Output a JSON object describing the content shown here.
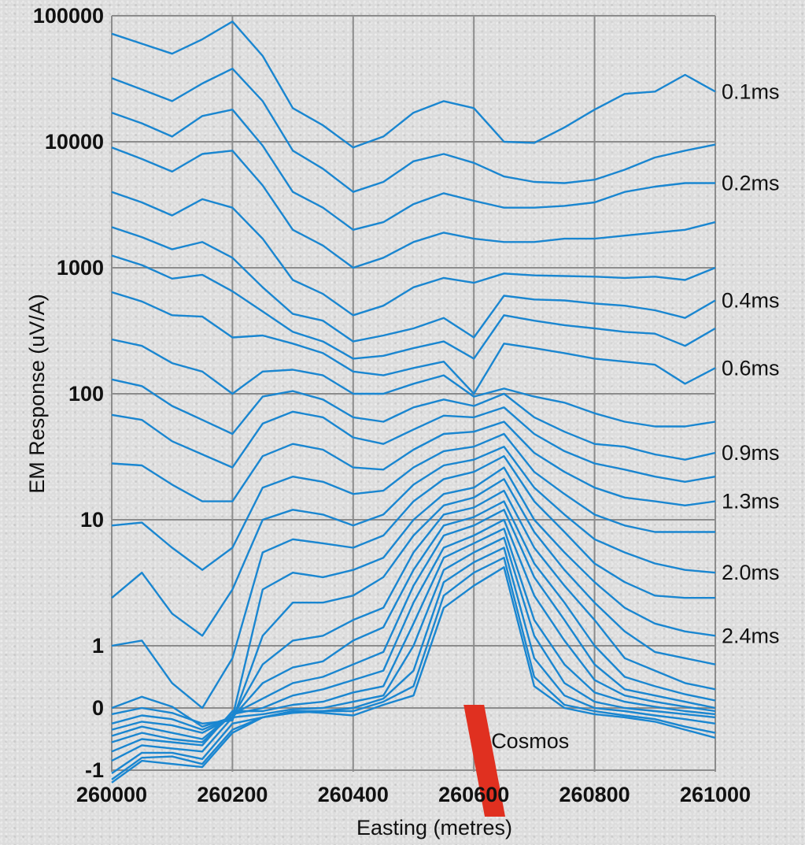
{
  "chart_data": {
    "type": "line",
    "title": "",
    "xlabel": "Easting (metres)",
    "ylabel": "EM Response (uV/A)",
    "xlim": [
      260000,
      261000
    ],
    "y_scale": "piecewise-log",
    "y_scale_note": "log10 above 1, linear between -1 and 1",
    "x_ticks": [
      "260000",
      "260200",
      "260400",
      "260600",
      "260800",
      "261000"
    ],
    "y_ticks": [
      {
        "value": 100000,
        "label": "100000"
      },
      {
        "value": 10000,
        "label": "10000"
      },
      {
        "value": 1000,
        "label": "1000"
      },
      {
        "value": 100,
        "label": "100"
      },
      {
        "value": 10,
        "label": "10"
      },
      {
        "value": 1,
        "label": "1"
      },
      {
        "value": 0,
        "label": "0"
      },
      {
        "value": -1,
        "label": "-1"
      }
    ],
    "grid": true,
    "line_color": "#1a86d0",
    "x": [
      260000,
      260050,
      260100,
      260150,
      260200,
      260250,
      260300,
      260350,
      260400,
      260450,
      260500,
      260550,
      260600,
      260650,
      260700,
      260750,
      260800,
      260850,
      260900,
      260950,
      261000
    ],
    "series": [
      {
        "name": "0.1ms",
        "values": [
          72000,
          60000,
          50000,
          65000,
          90000,
          48000,
          18500,
          13500,
          9000,
          11000,
          17000,
          21000,
          18500,
          10000,
          9800,
          13000,
          18000,
          24000,
          25000,
          34000,
          25000
        ]
      },
      {
        "name": "",
        "values": [
          32000,
          26000,
          21000,
          29000,
          38000,
          21000,
          8500,
          6100,
          4000,
          4800,
          7000,
          8000,
          6800,
          5300,
          4800,
          4700,
          5000,
          6000,
          7500,
          8500,
          9500
        ]
      },
      {
        "name": "0.2ms",
        "values": [
          17000,
          14000,
          11000,
          16000,
          18000,
          9300,
          4000,
          3000,
          2000,
          2300,
          3200,
          3900,
          3400,
          3000,
          3000,
          3100,
          3300,
          4000,
          4400,
          4700,
          4700
        ]
      },
      {
        "name": "",
        "values": [
          9000,
          7300,
          5800,
          8000,
          8500,
          4500,
          2000,
          1500,
          1000,
          1200,
          1600,
          1900,
          1700,
          1600,
          1600,
          1700,
          1700,
          1800,
          1900,
          2000,
          2300
        ]
      },
      {
        "name": "",
        "values": [
          4000,
          3300,
          2600,
          3500,
          3000,
          1700,
          800,
          620,
          420,
          500,
          700,
          830,
          760,
          900,
          870,
          860,
          850,
          830,
          850,
          800,
          1000
        ]
      },
      {
        "name": "0.4ms",
        "values": [
          2100,
          1750,
          1400,
          1600,
          1200,
          700,
          430,
          380,
          260,
          290,
          330,
          400,
          280,
          600,
          560,
          550,
          520,
          500,
          460,
          400,
          550
        ]
      },
      {
        "name": "",
        "values": [
          1250,
          1050,
          820,
          880,
          650,
          450,
          310,
          260,
          190,
          200,
          230,
          260,
          190,
          420,
          380,
          350,
          330,
          310,
          300,
          240,
          330
        ]
      },
      {
        "name": "0.6ms",
        "values": [
          640,
          540,
          420,
          410,
          280,
          290,
          250,
          210,
          150,
          140,
          160,
          180,
          100,
          250,
          230,
          210,
          190,
          180,
          170,
          120,
          160
        ]
      },
      {
        "name": "",
        "values": [
          270,
          240,
          175,
          150,
          100,
          150,
          155,
          140,
          100,
          100,
          120,
          140,
          95,
          110,
          95,
          85,
          70,
          60,
          55,
          55,
          60
        ]
      },
      {
        "name": "0.9ms",
        "values": [
          130,
          115,
          80,
          62,
          48,
          95,
          105,
          90,
          65,
          60,
          78,
          90,
          80,
          100,
          65,
          50,
          40,
          38,
          33,
          30,
          34
        ]
      },
      {
        "name": "",
        "values": [
          68,
          62,
          42,
          33,
          26,
          58,
          72,
          65,
          45,
          40,
          52,
          67,
          65,
          78,
          48,
          35,
          28,
          25,
          22,
          20,
          22
        ]
      },
      {
        "name": "1.3ms",
        "values": [
          28,
          27,
          19,
          14,
          14,
          32,
          40,
          36,
          26,
          25,
          36,
          48,
          50,
          60,
          34,
          24,
          18,
          15,
          14,
          13,
          14
        ]
      },
      {
        "name": "",
        "values": [
          9,
          9.5,
          6,
          4,
          6,
          18,
          22,
          20,
          16,
          17,
          26,
          35,
          38,
          48,
          24,
          16,
          11,
          9,
          8,
          8,
          8
        ]
      },
      {
        "name": "2.0ms",
        "values": [
          2.4,
          3.8,
          1.8,
          1.2,
          2.8,
          10,
          12,
          11,
          9,
          11,
          19,
          27,
          30,
          38,
          18,
          11,
          7,
          5.5,
          4.5,
          4,
          3.8
        ]
      },
      {
        "name": "",
        "values": [
          1,
          1.1,
          0.4,
          0,
          0.8,
          5.5,
          7,
          6.5,
          6,
          7.5,
          14,
          21,
          24,
          32,
          14,
          8,
          4.5,
          3.2,
          2.5,
          2.4,
          2.4
        ]
      },
      {
        "name": "2.4ms",
        "values": [
          0,
          0.18,
          0.02,
          -0.3,
          -0.15,
          2.8,
          3.8,
          3.5,
          4,
          5,
          10,
          16,
          18,
          26,
          10,
          5.5,
          3.2,
          2,
          1.5,
          1.3,
          1.2
        ]
      },
      {
        "name": "",
        "values": [
          -0.1,
          0,
          -0.08,
          -0.25,
          -0.2,
          1.2,
          2.2,
          2.2,
          2.5,
          3.5,
          7.5,
          13,
          15,
          21,
          8,
          4,
          2.2,
          1.3,
          0.9,
          0.8,
          0.7
        ]
      },
      {
        "name": "",
        "values": [
          -0.25,
          -0.12,
          -0.18,
          -0.35,
          -0.15,
          0.7,
          1.1,
          1.2,
          1.6,
          2,
          5.5,
          11,
          12.5,
          17,
          6,
          3,
          1.6,
          0.8,
          0.6,
          0.4,
          0.3
        ]
      },
      {
        "name": "",
        "values": [
          -0.35,
          -0.22,
          -0.28,
          -0.4,
          -0.15,
          0.4,
          0.65,
          0.75,
          1.1,
          1.4,
          4,
          9,
          10.5,
          14,
          4.5,
          2.2,
          1,
          0.5,
          0.35,
          0.22,
          0.12
        ]
      },
      {
        "name": "",
        "values": [
          -0.45,
          -0.3,
          -0.4,
          -0.5,
          -0.1,
          0.15,
          0.4,
          0.5,
          0.7,
          0.9,
          3,
          7.5,
          9,
          12,
          3.5,
          1.6,
          0.7,
          0.3,
          0.2,
          0.1,
          0
        ]
      },
      {
        "name": "",
        "values": [
          -0.55,
          -0.4,
          -0.5,
          -0.55,
          -0.1,
          0,
          0.2,
          0.3,
          0.45,
          0.6,
          2.2,
          6,
          7.5,
          10,
          2.5,
          1.1,
          0.45,
          0.2,
          0.1,
          0.02,
          -0.05
        ]
      },
      {
        "name": "",
        "values": [
          -0.7,
          -0.5,
          -0.55,
          -0.6,
          -0.05,
          -0.05,
          0.05,
          0.1,
          0.25,
          0.35,
          1.5,
          5,
          6.5,
          8.5,
          1.6,
          0.7,
          0.25,
          0.1,
          0.02,
          -0.05,
          -0.1
        ]
      },
      {
        "name": "",
        "values": [
          -0.85,
          -0.6,
          -0.65,
          -0.7,
          -0.15,
          -0.1,
          -0.02,
          0,
          0.1,
          0.2,
          1,
          4,
          5.5,
          7.2,
          1.2,
          0.4,
          0.1,
          0,
          -0.05,
          -0.1,
          -0.15
        ]
      },
      {
        "name": "",
        "values": [
          -1.05,
          -0.72,
          -0.72,
          -0.82,
          -0.25,
          -0.15,
          -0.05,
          -0.05,
          0,
          0.15,
          0.6,
          3.2,
          4.6,
          6,
          0.8,
          0.2,
          0,
          -0.05,
          -0.12,
          -0.18,
          -0.25
        ]
      },
      {
        "name": "",
        "values": [
          -1.15,
          -0.8,
          -0.78,
          -0.9,
          -0.35,
          -0.15,
          -0.08,
          -0.05,
          -0.05,
          0.1,
          0.35,
          2.5,
          3.8,
          5,
          0.5,
          0.05,
          -0.05,
          -0.12,
          -0.18,
          -0.3,
          -0.4
        ]
      },
      {
        "name": "",
        "values": [
          -1.2,
          -0.85,
          -0.9,
          -0.95,
          -0.4,
          -0.15,
          -0.05,
          -0.08,
          -0.12,
          0.05,
          0.2,
          2,
          3,
          4.2,
          0.35,
          0,
          -0.1,
          -0.15,
          -0.22,
          -0.35,
          -0.48
        ]
      }
    ],
    "annotations": [
      {
        "label": "Cosmos",
        "kind": "conductor-marker",
        "color": "#e03020",
        "x_top": 260600,
        "x_bottom": 260635
      }
    ]
  }
}
